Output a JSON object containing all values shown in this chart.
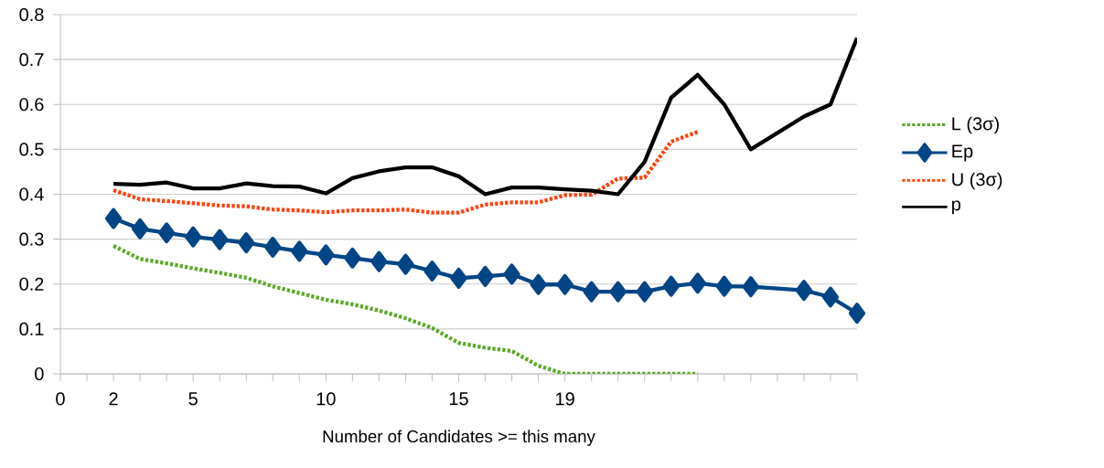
{
  "chart_data": {
    "type": "line",
    "xlabel": "Number of Candidates >= this many",
    "categories": [
      "0",
      null,
      "2",
      null,
      null,
      "5",
      null,
      null,
      null,
      null,
      "10",
      null,
      null,
      null,
      null,
      "15",
      null,
      null,
      null,
      "19",
      null,
      null,
      null,
      null,
      null,
      null,
      null,
      null,
      null,
      null,
      null
    ],
    "ylim": [
      0,
      0.8
    ],
    "yticks": [
      0,
      0.1,
      0.2,
      0.3,
      0.4,
      0.5,
      0.6,
      0.7,
      0.8
    ],
    "grid": "y",
    "legend": "right",
    "series": [
      {
        "name": "L (3σ)",
        "color": "#5ea82b",
        "line_style": "dotted",
        "marker": "none",
        "values": [
          null,
          null,
          0.285,
          0.256,
          0.246,
          0.235,
          0.225,
          0.214,
          0.195,
          0.18,
          0.165,
          0.155,
          0.141,
          0.124,
          0.102,
          0.069,
          0.058,
          0.051,
          0.018,
          0,
          0,
          0,
          0,
          0,
          0,
          null,
          null,
          null,
          null,
          null,
          null
        ]
      },
      {
        "name": "Ep",
        "color": "#004586",
        "line_style": "solid",
        "marker": "diamond",
        "values": [
          null,
          null,
          0.346,
          0.323,
          0.314,
          0.305,
          0.299,
          0.292,
          0.282,
          0.273,
          0.265,
          0.258,
          0.25,
          0.244,
          0.229,
          0.213,
          0.217,
          0.222,
          0.199,
          0.199,
          0.183,
          0.183,
          0.183,
          0.195,
          0.202,
          0.195,
          0.194,
          null,
          0.186,
          0.171,
          0.135
        ]
      },
      {
        "name": "U (3σ)",
        "color": "#ff420e",
        "line_style": "dotted",
        "marker": "none",
        "values": [
          null,
          null,
          0.409,
          0.389,
          0.385,
          0.38,
          0.375,
          0.373,
          0.366,
          0.364,
          0.36,
          0.364,
          0.364,
          0.366,
          0.359,
          0.359,
          0.377,
          0.382,
          0.382,
          0.398,
          0.399,
          0.435,
          0.437,
          0.517,
          0.539,
          null,
          null,
          null,
          null,
          null,
          null
        ]
      },
      {
        "name": "p",
        "color": "#000000",
        "line_style": "solid",
        "marker": "none",
        "values": [
          null,
          null,
          0.423,
          0.421,
          0.426,
          0.413,
          0.413,
          0.424,
          0.418,
          0.417,
          0.402,
          0.436,
          0.451,
          0.46,
          0.46,
          0.44,
          0.4,
          0.415,
          0.415,
          0.411,
          0.408,
          0.4,
          0.472,
          0.615,
          0.666,
          0.6,
          0.5,
          null,
          0.573,
          0.6,
          0.748
        ]
      }
    ]
  }
}
